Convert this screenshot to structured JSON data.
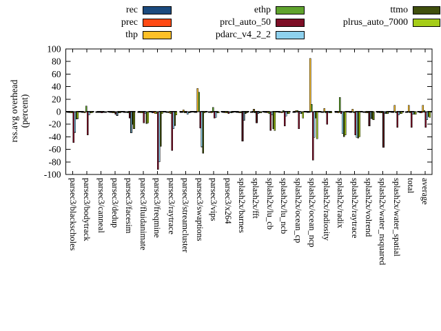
{
  "chart_data": {
    "type": "bar",
    "title": "",
    "ylabel": "rss.avg overhead (percent)",
    "ylabel_lines": [
      "rss.avg overhead",
      "(percent)"
    ],
    "ylim": [
      -100,
      100
    ],
    "ytick_step": 20,
    "yticks": [
      100,
      80,
      60,
      40,
      20,
      0,
      -20,
      -40,
      -60,
      -80,
      -100
    ],
    "grid": false,
    "legend_position": "top",
    "zero_line": "dashed",
    "categories": [
      "parsec3/blackscholes",
      "parsec3/bodytrack",
      "parsec3/canneal",
      "parsec3/dedup",
      "parsec3/facesim",
      "parsec3/fluidanimate",
      "parsec3/freqmine",
      "parsec3/raytrace",
      "parsec3/streamcluster",
      "parsec3/swaptions",
      "parsec3/vips",
      "parsec3/x264",
      "splash2x/barnes",
      "splash2x/fft",
      "splash2x/lu_cb",
      "splash2x/lu_ncb",
      "splash2x/ocean_cp",
      "splash2x/ocean_ncp",
      "splash2x/radiosity",
      "splash2x/radix",
      "splash2x/raytrace",
      "splash2x/volrend",
      "splash2x/water_nsquared",
      "splash2x/water_spatial",
      "total",
      "average"
    ],
    "series": [
      {
        "name": "rec",
        "color": "#1b4a7e",
        "values": [
          -1,
          -1,
          -1,
          -1,
          -1,
          -1,
          -2,
          -1,
          -1,
          -1,
          -1,
          -1,
          -1,
          -1,
          -1,
          -1,
          -1,
          -1,
          -1,
          -1,
          -1,
          -1,
          -1,
          -1,
          -1,
          -2
        ]
      },
      {
        "name": "prec",
        "color": "#ff4a14",
        "values": [
          -1,
          -1,
          -1,
          -1,
          -1,
          -1,
          -2,
          -1,
          -1,
          -1,
          -1,
          -1,
          -1,
          -1,
          -1,
          -1,
          -1,
          -1,
          -1,
          -1,
          -1,
          -1,
          -1,
          -1,
          -1,
          -2
        ]
      },
      {
        "name": "thp",
        "color": "#fdc028",
        "values": [
          -2,
          -2,
          -1,
          -2,
          -1,
          -2,
          -3,
          -2,
          3,
          37,
          -2,
          -2,
          -2,
          4,
          -2,
          -2,
          2,
          85,
          5,
          -2,
          4,
          -2,
          -2,
          10,
          10,
          10
        ]
      },
      {
        "name": "ethp",
        "color": "#5fa32d",
        "values": [
          -2,
          9,
          -1,
          -2,
          -2,
          -2,
          -3,
          -3,
          -2,
          31,
          7,
          -2,
          -2,
          -2,
          -3,
          2,
          2,
          12,
          -2,
          23,
          -2,
          -2,
          -2,
          -2,
          -2,
          2
        ]
      },
      {
        "name": "prcl_auto_50",
        "color": "#7d0e26",
        "values": [
          -49,
          -37,
          -2,
          -4,
          -10,
          -18,
          -92,
          -62,
          -2,
          -26,
          -10,
          -3,
          -47,
          -18,
          -30,
          -23,
          -27,
          -77,
          -20,
          -3,
          -37,
          -23,
          -57,
          -25,
          -25,
          -25
        ]
      },
      {
        "name": "pdarc_v4_2_2",
        "color": "#8ed1ee",
        "values": [
          -33,
          -5,
          -1,
          -6,
          -34,
          -3,
          -80,
          -27,
          -4,
          -56,
          -9,
          -2,
          -14,
          -3,
          -5,
          -7,
          -3,
          -41,
          -2,
          -35,
          -41,
          -10,
          -3,
          -5,
          -4,
          -13
        ]
      },
      {
        "name": "ttmo",
        "color": "#404f0d",
        "values": [
          -12,
          -2,
          -1,
          -2,
          -20,
          -19,
          -55,
          -22,
          -2,
          -66,
          -2,
          -2,
          -3,
          -2,
          -27,
          -3,
          -3,
          -10,
          -2,
          -40,
          -42,
          -11,
          -3,
          -3,
          -4,
          -8
        ]
      },
      {
        "name": "plrus_auto_7000",
        "color": "#a5cd18",
        "values": [
          -11,
          -2,
          -1,
          -2,
          -27,
          -18,
          -3,
          -5,
          -1,
          -2,
          -2,
          -1,
          -2,
          -2,
          -30,
          -3,
          -10,
          -43,
          -2,
          -37,
          -40,
          -13,
          -3,
          -3,
          -4,
          -9
        ]
      }
    ],
    "legend_columns": [
      [
        "rec",
        "prec",
        "thp"
      ],
      [
        "ethp",
        "prcl_auto_50",
        "pdarc_v4_2_2"
      ],
      [
        "ttmo",
        "plrus_auto_7000"
      ]
    ]
  }
}
